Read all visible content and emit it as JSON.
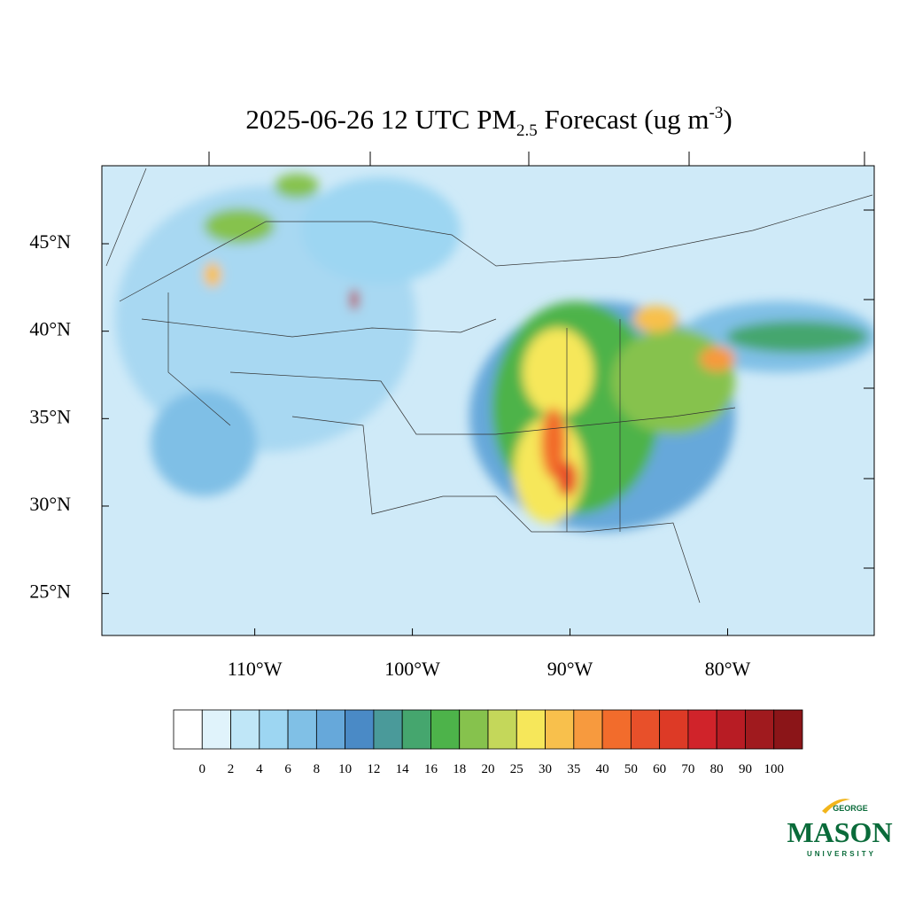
{
  "title": {
    "main": "2025-06-26 12 UTC PM",
    "sub": "2.5",
    "rest": " Forecast (ug m",
    "sup": "-3",
    "end": ")"
  },
  "map": {
    "xlim": [
      -119.7,
      -70.7
    ],
    "ylim": [
      22.6,
      49.46
    ],
    "lat_ticks": [
      {
        "value": 45,
        "label": "45°N"
      },
      {
        "value": 40,
        "label": "40°N"
      },
      {
        "value": 35,
        "label": "35°N"
      },
      {
        "value": 30,
        "label": "30°N"
      },
      {
        "value": 25,
        "label": "25°N"
      }
    ],
    "lon_ticks": [
      {
        "value": -110,
        "label": "110°W"
      },
      {
        "value": -100,
        "label": "100°W"
      },
      {
        "value": -90,
        "label": "90°W"
      },
      {
        "value": -80,
        "label": "80°W"
      }
    ]
  },
  "colorbar": {
    "levels": [
      0,
      2,
      4,
      6,
      8,
      10,
      12,
      14,
      16,
      18,
      20,
      25,
      30,
      35,
      40,
      50,
      60,
      70,
      80,
      90,
      100
    ],
    "colors": [
      "#ffffff",
      "#e0f3fb",
      "#bfe6f7",
      "#9dd6f2",
      "#80c0e6",
      "#66a8da",
      "#4a8ac6",
      "#4a9a9a",
      "#45a66e",
      "#4db34a",
      "#86c24d",
      "#c4d75a",
      "#f6e75a",
      "#f8c04c",
      "#f79a3e",
      "#f26c2c",
      "#e8502a",
      "#dd3a26",
      "#d0232a",
      "#b81c24",
      "#a01a1e",
      "#8b1518"
    ]
  },
  "logo": {
    "top": "GEORGE",
    "name": "MASON",
    "bottom": "UNIVERSITY"
  }
}
